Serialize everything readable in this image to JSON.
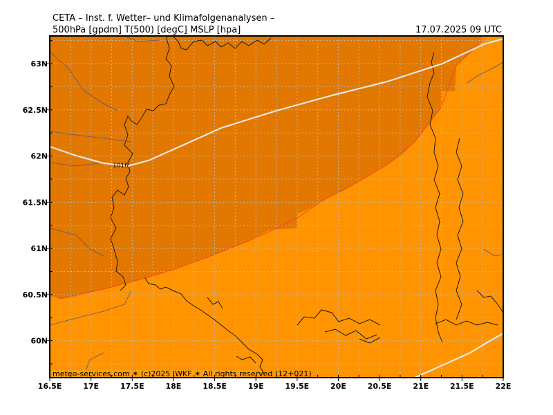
{
  "header": {
    "title": "CETA – Inst. f. Wetter– und Klimafolgenanalysen –",
    "subtitle_left": "500hPa [gpdm] T(500) [degC] MSLP [hpa]",
    "valid_time": "17.07.2025 09 UTC"
  },
  "map": {
    "lon_range": [
      16.5,
      22.0
    ],
    "lat_range": [
      59.6,
      63.3
    ],
    "x_ticks": [
      "16.5E",
      "17E",
      "17.5E",
      "18E",
      "18.5E",
      "19E",
      "19.5E",
      "20E",
      "20.5E",
      "21E",
      "21.5E",
      "22E"
    ],
    "y_ticks": [
      "63N",
      "62.5N",
      "62N",
      "61.5N",
      "61N",
      "60.5N",
      "60N"
    ],
    "temperature_zones": [
      {
        "zone": "colder",
        "color": "#E27800"
      },
      {
        "zone": "warmer",
        "color": "#FF9400"
      }
    ],
    "isobar_label": "1016",
    "footer": "meteo-services.com ✶ (c)2025 IWKF ✶ All rights reserved (12+021)"
  }
}
